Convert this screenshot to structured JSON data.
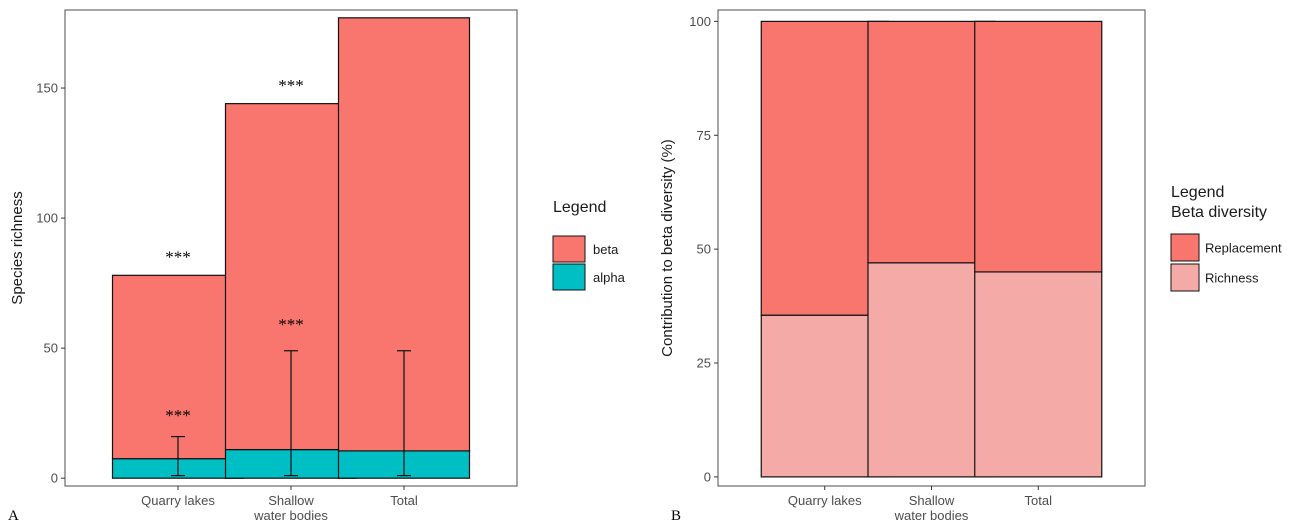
{
  "chart_data": [
    {
      "panel_label": "A",
      "type": "bar",
      "stacked": true,
      "ylabel": "Species richness",
      "categories": [
        "Quarry lakes",
        "Shallow\nwater bodies",
        "Total"
      ],
      "series": [
        {
          "name": "alpha",
          "values": [
            7.5,
            11,
            10.5
          ],
          "color": "#00BFC4"
        },
        {
          "name": "beta",
          "values": [
            70.5,
            133,
            166.5
          ],
          "color": "#F8766D"
        }
      ],
      "error_bars": [
        {
          "category": 0,
          "low": 1,
          "high": 16
        },
        {
          "category": 1,
          "low": 1,
          "high": 49
        },
        {
          "category": 2,
          "low": 1,
          "high": 49
        }
      ],
      "annotations": [
        {
          "category": 0,
          "y": 86,
          "text": "***"
        },
        {
          "category": 0,
          "y": 25,
          "text": "***"
        },
        {
          "category": 1,
          "y": 152,
          "text": "***"
        },
        {
          "category": 1,
          "y": 60,
          "text": "***"
        }
      ],
      "ylim": [
        -3,
        180
      ],
      "yticks": [
        0,
        50,
        100,
        150
      ],
      "legend": {
        "title": "Legend",
        "position": "right",
        "entries": [
          "beta",
          "alpha"
        ]
      },
      "grid": false
    },
    {
      "panel_label": "B",
      "type": "bar",
      "stacked": true,
      "ylabel": "Contribution to beta diversity (%)",
      "categories": [
        "Quarry lakes",
        "Shallow\nwater bodies",
        "Total"
      ],
      "series": [
        {
          "name": "Richness",
          "values": [
            35.5,
            47,
            45
          ],
          "color": "#F4AAA6"
        },
        {
          "name": "Replacement",
          "values": [
            64.5,
            53,
            55
          ],
          "color": "#F8766D"
        }
      ],
      "ylim": [
        -2,
        102.5
      ],
      "yticks": [
        0,
        25,
        50,
        75,
        100
      ],
      "legend": {
        "title": "Legend\nBeta diversity",
        "position": "right",
        "entries": [
          "Replacement",
          "Richness"
        ]
      },
      "grid": false
    }
  ]
}
